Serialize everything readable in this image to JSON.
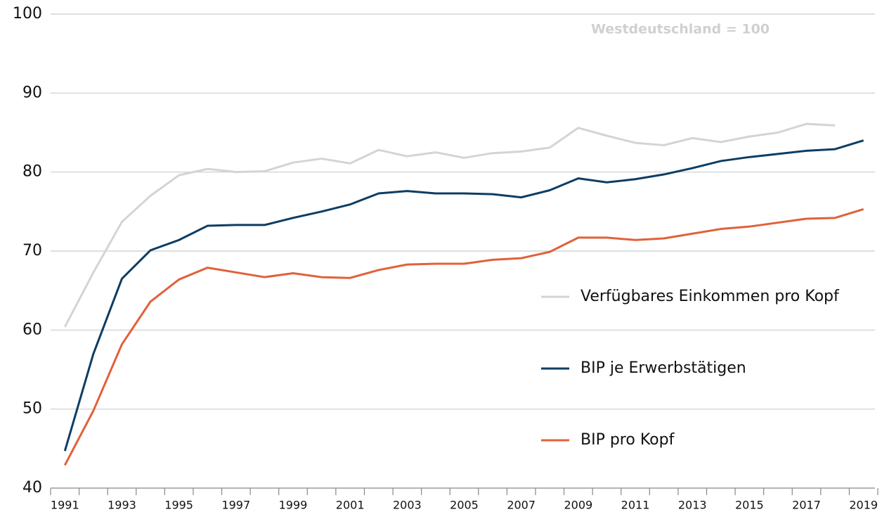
{
  "chart_data": {
    "type": "line",
    "annotation": "Westdeutschland = 100",
    "x": [
      1991,
      1992,
      1993,
      1994,
      1995,
      1996,
      1997,
      1998,
      1999,
      2000,
      2001,
      2002,
      2003,
      2004,
      2005,
      2006,
      2007,
      2008,
      2009,
      2010,
      2011,
      2012,
      2013,
      2014,
      2015,
      2016,
      2017,
      2018,
      2019
    ],
    "series": [
      {
        "name": "Verfügbares Einkommen pro Kopf",
        "color": "#d4d4d4",
        "values": [
          60.4,
          67.3,
          73.7,
          77.0,
          79.6,
          80.4,
          80.0,
          80.1,
          81.2,
          81.7,
          81.1,
          82.8,
          82.0,
          82.5,
          81.8,
          82.4,
          82.6,
          83.1,
          85.6,
          84.6,
          83.7,
          83.4,
          84.3,
          83.8,
          84.5,
          85.0,
          86.1,
          85.9,
          null
        ]
      },
      {
        "name": "BIP je Erwerbstätigen",
        "color": "#0d3d63",
        "values": [
          44.7,
          57.0,
          66.5,
          70.1,
          71.4,
          73.2,
          73.3,
          73.3,
          74.2,
          75.0,
          75.9,
          77.3,
          77.6,
          77.3,
          77.3,
          77.2,
          76.8,
          77.7,
          79.2,
          78.7,
          79.1,
          79.7,
          80.5,
          81.4,
          81.9,
          82.3,
          82.7,
          82.9,
          84.0
        ]
      },
      {
        "name": "BIP pro Kopf",
        "color": "#e0613a",
        "values": [
          42.9,
          49.8,
          58.2,
          63.6,
          66.4,
          67.9,
          67.3,
          66.7,
          67.2,
          66.7,
          66.6,
          67.6,
          68.3,
          68.4,
          68.4,
          68.9,
          69.1,
          69.9,
          71.7,
          71.7,
          71.4,
          71.6,
          72.2,
          72.8,
          73.1,
          73.6,
          74.1,
          74.2,
          75.3
        ]
      }
    ],
    "xlim": [
      1990.5,
      2019.5
    ],
    "xticks": [
      1991,
      1993,
      1995,
      1997,
      1999,
      2001,
      2003,
      2005,
      2007,
      2009,
      2011,
      2013,
      2015,
      2017,
      2019
    ],
    "ylim": [
      40,
      100
    ],
    "yticks": [
      40,
      50,
      60,
      70,
      80,
      90,
      100
    ],
    "grid": true
  }
}
